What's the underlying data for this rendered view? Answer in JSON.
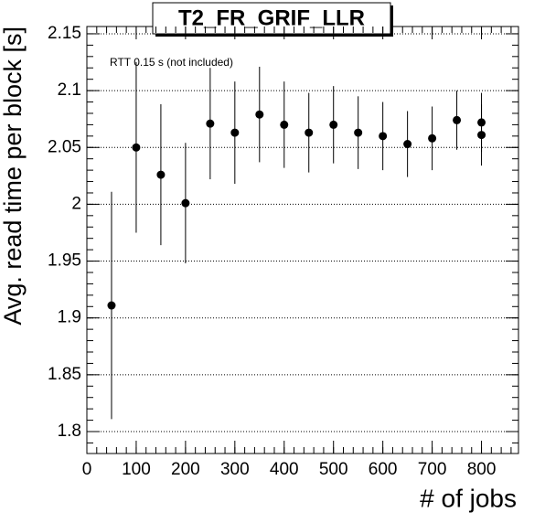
{
  "chart_data": {
    "type": "scatter",
    "title": "T2_FR_GRIF_LLR",
    "annotation": "RTT 0.15 s (not included)",
    "x_label": "# of jobs",
    "y_label": "Avg. read time per block [s]",
    "series": [
      {
        "name": "read time",
        "color": "#000000",
        "x": [
          50,
          100,
          150,
          200,
          250,
          300,
          350,
          400,
          450,
          500,
          550,
          600,
          650,
          700,
          750,
          800,
          800
        ],
        "values": [
          1.911,
          2.05,
          2.026,
          2.001,
          2.071,
          2.063,
          2.079,
          2.07,
          2.063,
          2.07,
          2.063,
          2.06,
          2.053,
          2.058,
          2.074,
          2.072,
          2.061
        ],
        "errors": [
          0.1,
          0.075,
          0.062,
          0.053,
          0.049,
          0.045,
          0.042,
          0.038,
          0.035,
          0.034,
          0.032,
          0.03,
          0.029,
          0.028,
          0.026,
          0.026,
          0.027
        ]
      }
    ],
    "xlim": [
      0,
      875
    ],
    "xticks": [
      0,
      100,
      200,
      300,
      400,
      500,
      600,
      700,
      800
    ],
    "ylim": [
      1.7807,
      2.1564
    ],
    "yticks": [
      1.8,
      1.85,
      1.9,
      1.95,
      2,
      2.05,
      2.1,
      2.15
    ],
    "grid": true
  }
}
